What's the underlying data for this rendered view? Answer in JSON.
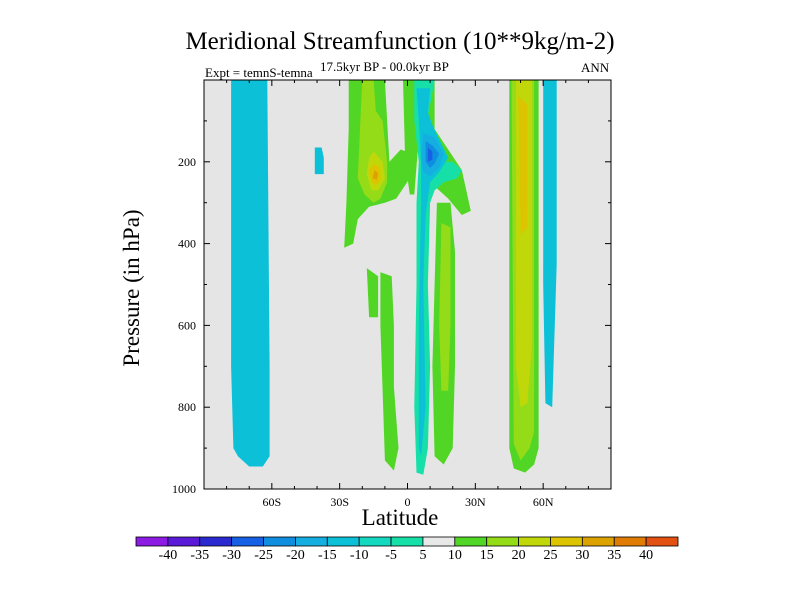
{
  "chart_data": {
    "type": "contour",
    "title": "Meridional Streamfunction (10**9kg/m-2)",
    "subtitle": "17.5kyr BP - 00.0kyr BP",
    "left_label": "Expt = temnS-temna",
    "right_label": "ANN",
    "xlabel": "Latitude",
    "ylabel": "Pressure (in hPa)",
    "xlim": [
      -90,
      90
    ],
    "ylim": [
      1000,
      0
    ],
    "x_ticks": [
      {
        "v": -60,
        "t": "60S"
      },
      {
        "v": -30,
        "t": "30S"
      },
      {
        "v": 0,
        "t": "0"
      },
      {
        "v": 30,
        "t": "30N"
      },
      {
        "v": 60,
        "t": "60N"
      }
    ],
    "y_ticks": [
      {
        "v": 200,
        "t": "200"
      },
      {
        "v": 400,
        "t": "400"
      },
      {
        "v": 600,
        "t": "600"
      },
      {
        "v": 800,
        "t": "800"
      },
      {
        "v": 1000,
        "t": "1000"
      }
    ],
    "background_color": "#e5e5e5",
    "contour_levels": [
      "-40",
      "-35",
      "-30",
      "-25",
      "-20",
      "-15",
      "-10",
      "-5",
      "5",
      "10",
      "15",
      "20",
      "25",
      "30",
      "35",
      "40"
    ],
    "colorbar_colors": [
      "#8c1ce4",
      "#5a1ad8",
      "#2b2ad0",
      "#1560e4",
      "#0f8ee0",
      "#14aee0",
      "#0cc0d8",
      "#14d8c0",
      "#16e0a8",
      "#e8e8e8",
      "#52d625",
      "#94dc18",
      "#c0d80a",
      "#dcc400",
      "#dca200",
      "#e07c04",
      "#e25012"
    ],
    "regions": [
      {
        "level": -15,
        "color": "#14aee0",
        "pts": [
          [
            -77,
            0
          ],
          [
            -64,
            0
          ],
          [
            -64,
            855
          ],
          [
            -66,
            880
          ],
          [
            -72,
            880
          ],
          [
            -77,
            840
          ]
        ]
      },
      {
        "level": -10,
        "color": "#0cc0d8",
        "pts": [
          [
            -78,
            0
          ],
          [
            -62,
            0
          ],
          [
            -61,
            700
          ],
          [
            -61,
            920
          ],
          [
            -64,
            945
          ],
          [
            -70,
            945
          ],
          [
            -75,
            920
          ],
          [
            -77,
            900
          ],
          [
            -78,
            700
          ]
        ]
      },
      {
        "level": -10,
        "color": "#0cc0d8",
        "pts": [
          [
            -41,
            165
          ],
          [
            -38,
            165
          ],
          [
            -37,
            190
          ],
          [
            -37,
            230
          ],
          [
            -41,
            230
          ]
        ]
      },
      {
        "level": -10,
        "color": "#0cc0d8",
        "pts": [
          [
            60,
            0
          ],
          [
            66,
            0
          ],
          [
            66,
            450
          ],
          [
            64,
            800
          ],
          [
            61,
            790
          ],
          [
            60,
            500
          ]
        ]
      },
      {
        "level": 5,
        "color": "#52d625",
        "pts": [
          [
            -26,
            0
          ],
          [
            -10,
            0
          ],
          [
            -8,
            200
          ],
          [
            -3,
            170
          ],
          [
            2,
            180
          ],
          [
            1,
            240
          ],
          [
            -5,
            290
          ],
          [
            -10,
            300
          ],
          [
            -17,
            310
          ],
          [
            -22,
            340
          ],
          [
            -24,
            400
          ],
          [
            -28,
            410
          ],
          [
            -27,
            300
          ],
          [
            -26,
            120
          ]
        ]
      },
      {
        "level": 10,
        "color": "#94dc18",
        "pts": [
          [
            -20,
            0
          ],
          [
            -15,
            0
          ],
          [
            -14,
            75
          ],
          [
            -11,
            100
          ],
          [
            -9,
            200
          ],
          [
            -9,
            250
          ],
          [
            -12,
            290
          ],
          [
            -15,
            300
          ],
          [
            -19,
            280
          ],
          [
            -22,
            240
          ],
          [
            -21,
            120
          ]
        ]
      },
      {
        "level": 10,
        "color": "#94dc18",
        "pts": [
          [
            -15,
            140
          ],
          [
            -10,
            180
          ],
          [
            -9,
            240
          ],
          [
            -13,
            290
          ],
          [
            -18,
            280
          ],
          [
            -21,
            230
          ],
          [
            -19,
            160
          ]
        ]
      },
      {
        "level": 15,
        "color": "#c0d80a",
        "pts": [
          [
            -15,
            175
          ],
          [
            -11,
            200
          ],
          [
            -10,
            240
          ],
          [
            -13,
            270
          ],
          [
            -16,
            270
          ],
          [
            -18,
            230
          ],
          [
            -17,
            190
          ]
        ]
      },
      {
        "level": 20,
        "color": "#dcc400",
        "pts": [
          [
            -15,
            205
          ],
          [
            -12,
            215
          ],
          [
            -12,
            245
          ],
          [
            -14,
            258
          ],
          [
            -16,
            248
          ],
          [
            -17,
            220
          ]
        ]
      },
      {
        "level": 25,
        "color": "#dca200",
        "pts": [
          [
            -14.5,
            220
          ],
          [
            -13,
            228
          ],
          [
            -13.5,
            244
          ],
          [
            -15.5,
            240
          ]
        ]
      },
      {
        "level": 5,
        "color": "#52d625",
        "pts": [
          [
            -12,
            470
          ],
          [
            -7,
            480
          ],
          [
            -6,
            600
          ],
          [
            -6,
            750
          ],
          [
            -4,
            900
          ],
          [
            -6,
            955
          ],
          [
            -10,
            930
          ],
          [
            -11,
            760
          ],
          [
            -12,
            600
          ]
        ]
      },
      {
        "level": 5,
        "color": "#52d625",
        "pts": [
          [
            -18,
            460
          ],
          [
            -13,
            480
          ],
          [
            -13,
            580
          ],
          [
            -17,
            580
          ]
        ]
      },
      {
        "level": 5,
        "color": "#52d625",
        "pts": [
          [
            5,
            0
          ],
          [
            12,
            0
          ],
          [
            12,
            120
          ],
          [
            18,
            170
          ],
          [
            24,
            220
          ],
          [
            28,
            320
          ],
          [
            24,
            330
          ],
          [
            18,
            290
          ],
          [
            12,
            260
          ],
          [
            9,
            230
          ],
          [
            7,
            160
          ]
        ]
      },
      {
        "level": 5,
        "color": "#52d625",
        "pts": [
          [
            13,
            300
          ],
          [
            19,
            300
          ],
          [
            21,
            420
          ],
          [
            21,
            700
          ],
          [
            20,
            900
          ],
          [
            16,
            940
          ],
          [
            12,
            920
          ],
          [
            11,
            700
          ],
          [
            12,
            500
          ]
        ]
      },
      {
        "level": 10,
        "color": "#94dc18",
        "pts": [
          [
            15,
            350
          ],
          [
            19,
            360
          ],
          [
            19,
            600
          ],
          [
            18,
            760
          ],
          [
            15,
            760
          ],
          [
            14,
            600
          ]
        ]
      },
      {
        "level": 5,
        "color": "#52d625",
        "pts": [
          [
            45,
            0
          ],
          [
            58,
            0
          ],
          [
            58,
            900
          ],
          [
            56,
            940
          ],
          [
            52,
            960
          ],
          [
            47,
            950
          ],
          [
            45,
            900
          ]
        ]
      },
      {
        "level": 10,
        "color": "#94dc18",
        "pts": [
          [
            46,
            0
          ],
          [
            56,
            0
          ],
          [
            56,
            860
          ],
          [
            54,
            900
          ],
          [
            50,
            930
          ],
          [
            47,
            890
          ]
        ]
      },
      {
        "level": 15,
        "color": "#c0d80a",
        "pts": [
          [
            48,
            0
          ],
          [
            55,
            0
          ],
          [
            55,
            650
          ],
          [
            53,
            790
          ],
          [
            50,
            800
          ],
          [
            48,
            700
          ]
        ]
      },
      {
        "level": 20,
        "color": "#dcc400",
        "pts": [
          [
            49,
            40
          ],
          [
            53,
            60
          ],
          [
            53,
            360
          ],
          [
            50,
            380
          ]
        ]
      },
      {
        "level": 5,
        "color": "#52d625",
        "pts": [
          [
            -2,
            0
          ],
          [
            5,
            0
          ],
          [
            5,
            140
          ],
          [
            3,
            280
          ],
          [
            1,
            280
          ],
          [
            -1,
            200
          ]
        ]
      },
      {
        "level": -5,
        "color": "#16e0a8",
        "pts": [
          [
            3,
            0
          ],
          [
            12,
            0
          ],
          [
            8,
            120
          ],
          [
            11,
            160
          ],
          [
            14,
            200
          ],
          [
            20,
            200
          ],
          [
            24,
            220
          ],
          [
            22,
            240
          ],
          [
            16,
            250
          ],
          [
            12,
            270
          ],
          [
            10,
            300
          ],
          [
            9,
            500
          ],
          [
            10,
            700
          ],
          [
            9,
            900
          ],
          [
            7,
            965
          ],
          [
            4,
            960
          ],
          [
            3,
            800
          ],
          [
            4,
            500
          ],
          [
            4,
            300
          ],
          [
            5,
            200
          ],
          [
            3,
            100
          ]
        ]
      },
      {
        "level": -10,
        "color": "#0cc0d8",
        "pts": [
          [
            4,
            20
          ],
          [
            10,
            20
          ],
          [
            9,
            80
          ],
          [
            11,
            110
          ],
          [
            14,
            145
          ],
          [
            18,
            190
          ],
          [
            14,
            225
          ],
          [
            10,
            250
          ],
          [
            8,
            330
          ],
          [
            7,
            500
          ],
          [
            8,
            800
          ],
          [
            6,
            920
          ],
          [
            5,
            900
          ],
          [
            5,
            600
          ],
          [
            6,
            300
          ],
          [
            6,
            200
          ],
          [
            5,
            100
          ]
        ]
      },
      {
        "level": -15,
        "color": "#14aee0",
        "pts": [
          [
            7,
            130
          ],
          [
            12,
            140
          ],
          [
            16,
            180
          ],
          [
            14,
            215
          ],
          [
            10,
            235
          ],
          [
            7,
            225
          ],
          [
            6,
            190
          ]
        ]
      },
      {
        "level": -20,
        "color": "#0f8ee0",
        "pts": [
          [
            8,
            150
          ],
          [
            11,
            160
          ],
          [
            14,
            180
          ],
          [
            12,
            205
          ],
          [
            10,
            215
          ],
          [
            8,
            200
          ]
        ]
      },
      {
        "level": -25,
        "color": "#1560e4",
        "pts": [
          [
            9,
            165
          ],
          [
            11,
            175
          ],
          [
            11,
            195
          ],
          [
            9,
            200
          ]
        ]
      }
    ]
  }
}
